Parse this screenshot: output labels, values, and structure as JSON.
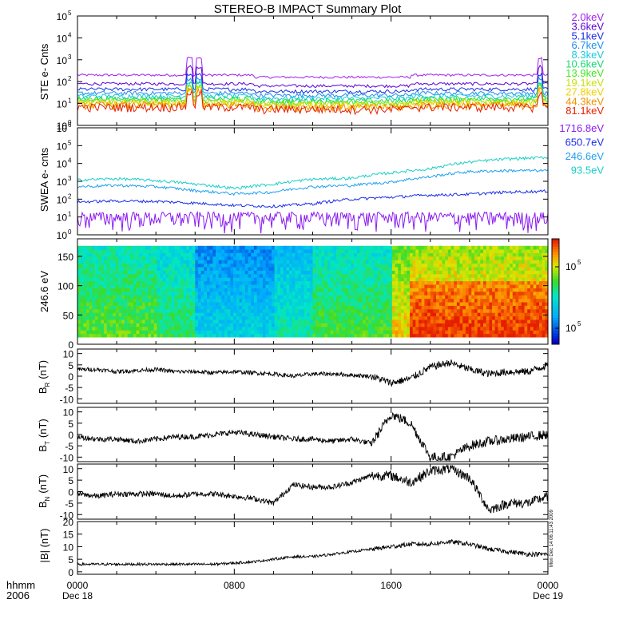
{
  "title": "STEREO-B IMPACT Summary Plot",
  "stamp": "Mon Dec 14 06:11:43 2009",
  "time_axis": {
    "corner_label": "hhmm",
    "year_label": "2006",
    "ticks": [
      {
        "hour": 0,
        "label": "0000",
        "date": "Dec 18"
      },
      {
        "hour": 8,
        "label": "0800",
        "date": ""
      },
      {
        "hour": 16,
        "label": "1600",
        "date": ""
      },
      {
        "hour": 24,
        "label": "0000",
        "date": "Dec 19"
      }
    ],
    "range_hours": [
      0,
      24
    ]
  },
  "panel_labels": {
    "ste": "STE e- Cnts",
    "swea": "SWEA e- cnts",
    "spec": "246.6 eV",
    "br_main": "B",
    "br_sub": "R",
    "br_unit": "(nT)",
    "bt_main": "B",
    "bt_sub": "T",
    "bt_unit": "(nT)",
    "bn_main": "B",
    "bn_sub": "N",
    "bn_unit": "(nT)",
    "bmag": "|B| (nT)"
  },
  "colorbar": {
    "ticks": [
      "10",
      "10"
    ],
    "exps": [
      "5",
      "5"
    ],
    "labels_note": ""
  },
  "chart_data": [
    {
      "type": "line",
      "ylabel": "STE e- Cnts",
      "yscale": "log",
      "ylim_exp": [
        0,
        5
      ],
      "ytick_exps": [
        0,
        1,
        2,
        3,
        4,
        5
      ],
      "series": [
        {
          "name": "2.0keV",
          "color": "#a020f0",
          "base": 200,
          "values_note": ""
        },
        {
          "name": "3.6keV",
          "color": "#5a00d6",
          "base": 80
        },
        {
          "name": "5.1keV",
          "color": "#1a2ee8",
          "base": 45
        },
        {
          "name": "6.7keV",
          "color": "#1e8ef0",
          "base": 30
        },
        {
          "name": "8.3keV",
          "color": "#16c8e0",
          "base": 22
        },
        {
          "name": "10.6keV",
          "color": "#18d878",
          "base": 17
        },
        {
          "name": "13.9keV",
          "color": "#3ee81c",
          "base": 14
        },
        {
          "name": "19.1keV",
          "color": "#c8e010",
          "base": 12
        },
        {
          "name": "27.8keV",
          "color": "#f0d000",
          "base": 10
        },
        {
          "name": "44.3keV",
          "color": "#f09000",
          "base": 8.5
        },
        {
          "name": "81.1keV",
          "color": "#e82000",
          "base": 7
        }
      ],
      "spikes_hour": [
        5.7,
        6.2,
        23.6
      ]
    },
    {
      "type": "line",
      "ylabel": "SWEA e- cnts",
      "yscale": "log",
      "ylim_exp": [
        0,
        6
      ],
      "ytick_exps": [
        0,
        1,
        2,
        3,
        4,
        5,
        6
      ],
      "series": [
        {
          "name": "1716.8eV",
          "color": "#8a1cf0",
          "values": [
            10,
            10,
            10,
            10,
            10,
            10,
            10,
            10,
            10,
            10,
            10,
            10,
            10
          ]
        },
        {
          "name": "650.7eV",
          "color": "#1a2ee8",
          "values": [
            70,
            80,
            75,
            60,
            45,
            40,
            55,
            100,
            130,
            170,
            190,
            250,
            280
          ]
        },
        {
          "name": "246.6eV",
          "color": "#1ea0f0",
          "values": [
            500,
            600,
            500,
            300,
            200,
            250,
            500,
            600,
            900,
            1800,
            3500,
            4000,
            4000
          ]
        },
        {
          "name": "93.5eV",
          "color": "#18d0c8",
          "values": [
            1200,
            1400,
            1100,
            700,
            400,
            700,
            1300,
            1500,
            3000,
            5000,
            12000,
            18000,
            22000
          ]
        }
      ],
      "x_hours": [
        0,
        2,
        4,
        6,
        8,
        10,
        12,
        14,
        16,
        18,
        20,
        22,
        24
      ]
    },
    {
      "type": "heatmap",
      "ylabel": "246.6 eV",
      "ylim": [
        0,
        180
      ],
      "yticks": [
        0,
        50,
        100,
        150
      ],
      "colorscale": "rainbow",
      "colorbar_ticks_exp": [
        5,
        5
      ]
    },
    {
      "type": "line",
      "ylabel": "BR (nT)",
      "ylim": [
        -12,
        12
      ],
      "yticks": [
        -10,
        -5,
        0,
        5,
        10
      ],
      "x_hours": [
        0,
        1,
        2,
        3,
        4,
        5,
        6,
        7,
        8,
        9,
        10,
        11,
        12,
        13,
        14,
        15,
        16,
        17,
        18,
        19,
        20,
        21,
        22,
        23,
        24
      ],
      "values": [
        3,
        3,
        2,
        2.5,
        3,
        2,
        2,
        1.5,
        2,
        1.5,
        1,
        0,
        1,
        1,
        0.5,
        0,
        -3,
        -1,
        4,
        6,
        3,
        1,
        2,
        2,
        5
      ]
    },
    {
      "type": "line",
      "ylabel": "BT (nT)",
      "ylim": [
        -12,
        12
      ],
      "yticks": [
        -10,
        -5,
        0,
        5,
        10
      ],
      "x_hours": [
        0,
        1,
        2,
        3,
        4,
        5,
        6,
        7,
        8,
        9,
        10,
        11,
        12,
        13,
        14,
        15,
        16,
        17,
        18,
        19,
        20,
        21,
        22,
        23,
        24
      ],
      "values": [
        -1,
        -2,
        -2,
        -3,
        -2,
        -1,
        -1,
        0,
        1,
        0,
        -1,
        -2,
        -2,
        -3,
        -2,
        -4,
        9,
        5,
        -10,
        -10,
        -5,
        -3,
        -2,
        -1,
        0
      ]
    },
    {
      "type": "line",
      "ylabel": "BN (nT)",
      "ylim": [
        -12,
        12
      ],
      "yticks": [
        -10,
        -5,
        0,
        5,
        10
      ],
      "x_hours": [
        0,
        1,
        2,
        3,
        4,
        5,
        6,
        7,
        8,
        9,
        10,
        11,
        12,
        13,
        14,
        15,
        16,
        17,
        18,
        19,
        20,
        21,
        22,
        23,
        24
      ],
      "values": [
        -1,
        -2,
        -1,
        -1,
        -1,
        -2,
        -1,
        -1,
        -2,
        -3,
        -5,
        3,
        2,
        2,
        4,
        7,
        7,
        4,
        9,
        10,
        6,
        -8,
        -5,
        -5,
        -2
      ]
    },
    {
      "type": "line",
      "ylabel": "|B| (nT)",
      "ylim": [
        -1,
        20
      ],
      "yticks": [
        0,
        5,
        10,
        15,
        20
      ],
      "x_hours": [
        0,
        1,
        2,
        3,
        4,
        5,
        6,
        7,
        8,
        9,
        10,
        11,
        12,
        13,
        14,
        15,
        16,
        17,
        18,
        19,
        20,
        21,
        22,
        23,
        24
      ],
      "values": [
        3,
        3,
        3,
        3,
        3,
        3,
        3,
        3,
        3.5,
        4,
        5,
        6,
        6,
        7,
        8,
        9,
        10,
        11,
        11,
        12,
        11,
        9,
        8,
        7,
        7
      ]
    }
  ]
}
